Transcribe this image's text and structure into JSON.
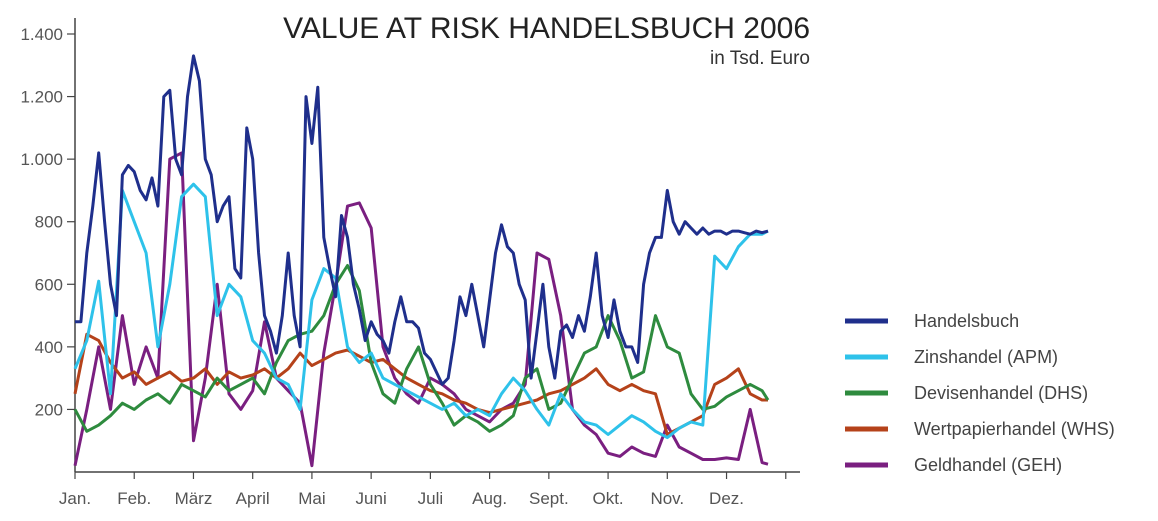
{
  "chart_data": {
    "type": "line",
    "title": "VALUE AT RISK HANDELSBUCH 2006",
    "subtitle": "in Tsd. Euro",
    "xlabel": "",
    "ylabel": "",
    "categories": [
      "Jan.",
      "Feb.",
      "März",
      "April",
      "Mai",
      "Juni",
      "Juli",
      "Aug.",
      "Sept.",
      "Okt.",
      "Nov.",
      "Dez."
    ],
    "ylim": [
      0,
      1400
    ],
    "yticks": [
      200,
      400,
      600,
      800,
      1000,
      1200,
      1400
    ],
    "ytick_labels": [
      "200",
      "400",
      "600",
      "800",
      "1.000",
      "1.200",
      "1.400"
    ],
    "grid": false,
    "legend_position": "right",
    "series": [
      {
        "name": "Handelsbuch",
        "color": "#1f2f8c",
        "x": [
          0,
          0.1,
          0.2,
          0.3,
          0.4,
          0.5,
          0.6,
          0.7,
          0.8,
          0.9,
          1.0,
          1.1,
          1.2,
          1.3,
          1.4,
          1.5,
          1.6,
          1.7,
          1.8,
          1.9,
          2.0,
          2.1,
          2.2,
          2.3,
          2.4,
          2.5,
          2.6,
          2.7,
          2.8,
          2.9,
          3.0,
          3.1,
          3.2,
          3.3,
          3.4,
          3.5,
          3.6,
          3.7,
          3.8,
          3.9,
          4.0,
          4.1,
          4.2,
          4.3,
          4.4,
          4.5,
          4.6,
          4.7,
          4.8,
          4.9,
          5.0,
          5.1,
          5.2,
          5.3,
          5.4,
          5.5,
          5.6,
          5.7,
          5.8,
          5.9,
          6.0,
          6.1,
          6.2,
          6.3,
          6.4,
          6.5,
          6.6,
          6.7,
          6.8,
          6.9,
          7.0,
          7.1,
          7.2,
          7.3,
          7.4,
          7.5,
          7.6,
          7.7,
          7.8,
          7.9,
          8.0,
          8.1,
          8.2,
          8.3,
          8.4,
          8.5,
          8.6,
          8.7,
          8.8,
          8.9,
          9.0,
          9.1,
          9.2,
          9.3,
          9.4,
          9.5,
          9.6,
          9.7,
          9.8,
          9.9,
          10.0,
          10.1,
          10.2,
          10.3,
          10.4,
          10.5,
          10.6,
          10.7,
          10.8,
          10.9,
          11.0,
          11.1,
          11.2,
          11.3,
          11.4,
          11.5,
          11.6,
          11.7
        ],
        "values": [
          480,
          480,
          700,
          850,
          1020,
          800,
          600,
          500,
          950,
          980,
          960,
          900,
          870,
          940,
          850,
          1200,
          1220,
          1000,
          950,
          1200,
          1330,
          1250,
          1000,
          950,
          800,
          850,
          880,
          650,
          620,
          1100,
          1000,
          700,
          500,
          450,
          380,
          500,
          700,
          500,
          400,
          1200,
          1050,
          1230,
          750,
          650,
          560,
          820,
          750,
          600,
          520,
          420,
          480,
          440,
          420,
          380,
          480,
          560,
          480,
          480,
          460,
          380,
          360,
          320,
          280,
          300,
          420,
          560,
          500,
          600,
          500,
          400,
          550,
          700,
          790,
          720,
          700,
          600,
          550,
          300,
          450,
          600,
          400,
          300,
          450,
          470,
          430,
          500,
          450,
          560,
          700,
          500,
          430,
          550,
          450,
          400,
          400,
          350,
          600,
          700,
          750,
          750,
          900,
          800,
          760,
          800,
          780,
          760,
          780,
          760,
          770,
          770,
          760,
          770,
          770,
          765,
          760,
          770,
          765,
          770
        ]
      },
      {
        "name": "Zinshandel (APM)",
        "color": "#2ec2ea",
        "x": [
          0,
          0.2,
          0.4,
          0.6,
          0.8,
          1.0,
          1.2,
          1.4,
          1.6,
          1.8,
          2.0,
          2.2,
          2.4,
          2.6,
          2.8,
          3.0,
          3.2,
          3.4,
          3.6,
          3.8,
          4.0,
          4.2,
          4.4,
          4.6,
          4.8,
          5.0,
          5.2,
          5.4,
          5.6,
          5.8,
          6.0,
          6.2,
          6.4,
          6.6,
          6.8,
          7.0,
          7.2,
          7.4,
          7.6,
          7.8,
          8.0,
          8.2,
          8.4,
          8.6,
          8.8,
          9.0,
          9.2,
          9.4,
          9.6,
          9.8,
          10.0,
          10.2,
          10.4,
          10.6,
          10.8,
          11.0,
          11.2,
          11.4,
          11.6,
          11.7
        ],
        "values": [
          330,
          420,
          610,
          250,
          900,
          800,
          700,
          400,
          600,
          880,
          920,
          880,
          500,
          600,
          560,
          420,
          380,
          300,
          280,
          200,
          550,
          650,
          620,
          400,
          350,
          380,
          300,
          280,
          260,
          240,
          220,
          200,
          220,
          180,
          200,
          180,
          250,
          300,
          260,
          200,
          150,
          250,
          200,
          160,
          150,
          120,
          150,
          180,
          160,
          130,
          110,
          140,
          160,
          150,
          690,
          650,
          720,
          760,
          760,
          770
        ]
      },
      {
        "name": "Devisenhandel (DHS)",
        "color": "#2e8b3e",
        "x": [
          0,
          0.2,
          0.4,
          0.6,
          0.8,
          1.0,
          1.2,
          1.4,
          1.6,
          1.8,
          2.0,
          2.2,
          2.4,
          2.6,
          2.8,
          3.0,
          3.2,
          3.4,
          3.6,
          3.8,
          4.0,
          4.2,
          4.4,
          4.6,
          4.8,
          5.0,
          5.2,
          5.4,
          5.6,
          5.8,
          6.0,
          6.2,
          6.4,
          6.6,
          6.8,
          7.0,
          7.2,
          7.4,
          7.6,
          7.8,
          8.0,
          8.2,
          8.4,
          8.6,
          8.8,
          9.0,
          9.2,
          9.4,
          9.6,
          9.8,
          10.0,
          10.2,
          10.4,
          10.6,
          10.8,
          11.0,
          11.2,
          11.4,
          11.6,
          11.7
        ],
        "values": [
          200,
          130,
          150,
          180,
          220,
          200,
          230,
          250,
          220,
          280,
          260,
          240,
          300,
          260,
          280,
          300,
          250,
          350,
          420,
          440,
          450,
          500,
          600,
          660,
          580,
          350,
          250,
          220,
          330,
          400,
          280,
          220,
          150,
          180,
          160,
          130,
          150,
          180,
          300,
          330,
          200,
          220,
          300,
          380,
          400,
          500,
          420,
          300,
          320,
          500,
          400,
          380,
          250,
          200,
          210,
          240,
          260,
          280,
          260,
          230
        ]
      },
      {
        "name": "Wertpapierhandel (WHS)",
        "color": "#b5421a",
        "x": [
          0,
          0.2,
          0.4,
          0.6,
          0.8,
          1.0,
          1.2,
          1.4,
          1.6,
          1.8,
          2.0,
          2.2,
          2.4,
          2.6,
          2.8,
          3.0,
          3.2,
          3.4,
          3.6,
          3.8,
          4.0,
          4.2,
          4.4,
          4.6,
          4.8,
          5.0,
          5.2,
          5.4,
          5.6,
          5.8,
          6.0,
          6.2,
          6.4,
          6.6,
          6.8,
          7.0,
          7.2,
          7.4,
          7.6,
          7.8,
          8.0,
          8.2,
          8.4,
          8.6,
          8.8,
          9.0,
          9.2,
          9.4,
          9.6,
          9.8,
          10.0,
          10.2,
          10.4,
          10.6,
          10.8,
          11.0,
          11.2,
          11.4,
          11.6,
          11.7
        ],
        "values": [
          250,
          440,
          420,
          350,
          300,
          320,
          280,
          300,
          320,
          290,
          300,
          330,
          280,
          320,
          300,
          310,
          330,
          300,
          330,
          380,
          340,
          360,
          380,
          390,
          370,
          350,
          360,
          330,
          300,
          280,
          260,
          250,
          230,
          220,
          200,
          190,
          200,
          210,
          220,
          230,
          250,
          260,
          280,
          300,
          330,
          280,
          260,
          280,
          260,
          250,
          120,
          140,
          160,
          180,
          280,
          300,
          330,
          250,
          230,
          230
        ]
      },
      {
        "name": "Geldhandel (GEH)",
        "color": "#7a1f80",
        "x": [
          0,
          0.2,
          0.4,
          0.6,
          0.8,
          1.0,
          1.2,
          1.4,
          1.6,
          1.8,
          2.0,
          2.2,
          2.4,
          2.6,
          2.8,
          3.0,
          3.2,
          3.4,
          3.6,
          3.8,
          4.0,
          4.2,
          4.4,
          4.6,
          4.8,
          5.0,
          5.2,
          5.4,
          5.6,
          5.8,
          6.0,
          6.2,
          6.4,
          6.6,
          6.8,
          7.0,
          7.2,
          7.4,
          7.6,
          7.8,
          8.0,
          8.2,
          8.4,
          8.6,
          8.8,
          9.0,
          9.2,
          9.4,
          9.6,
          9.8,
          10.0,
          10.2,
          10.4,
          10.6,
          10.8,
          11.0,
          11.2,
          11.4,
          11.6,
          11.7
        ],
        "values": [
          20,
          200,
          400,
          200,
          500,
          280,
          400,
          300,
          1000,
          1020,
          100,
          300,
          600,
          250,
          200,
          260,
          480,
          300,
          260,
          220,
          20,
          380,
          600,
          850,
          860,
          780,
          400,
          300,
          250,
          220,
          300,
          280,
          250,
          200,
          180,
          160,
          200,
          220,
          280,
          700,
          680,
          500,
          200,
          150,
          120,
          60,
          50,
          80,
          60,
          50,
          150,
          80,
          60,
          40,
          40,
          45,
          40,
          200,
          30,
          25
        ]
      }
    ]
  }
}
